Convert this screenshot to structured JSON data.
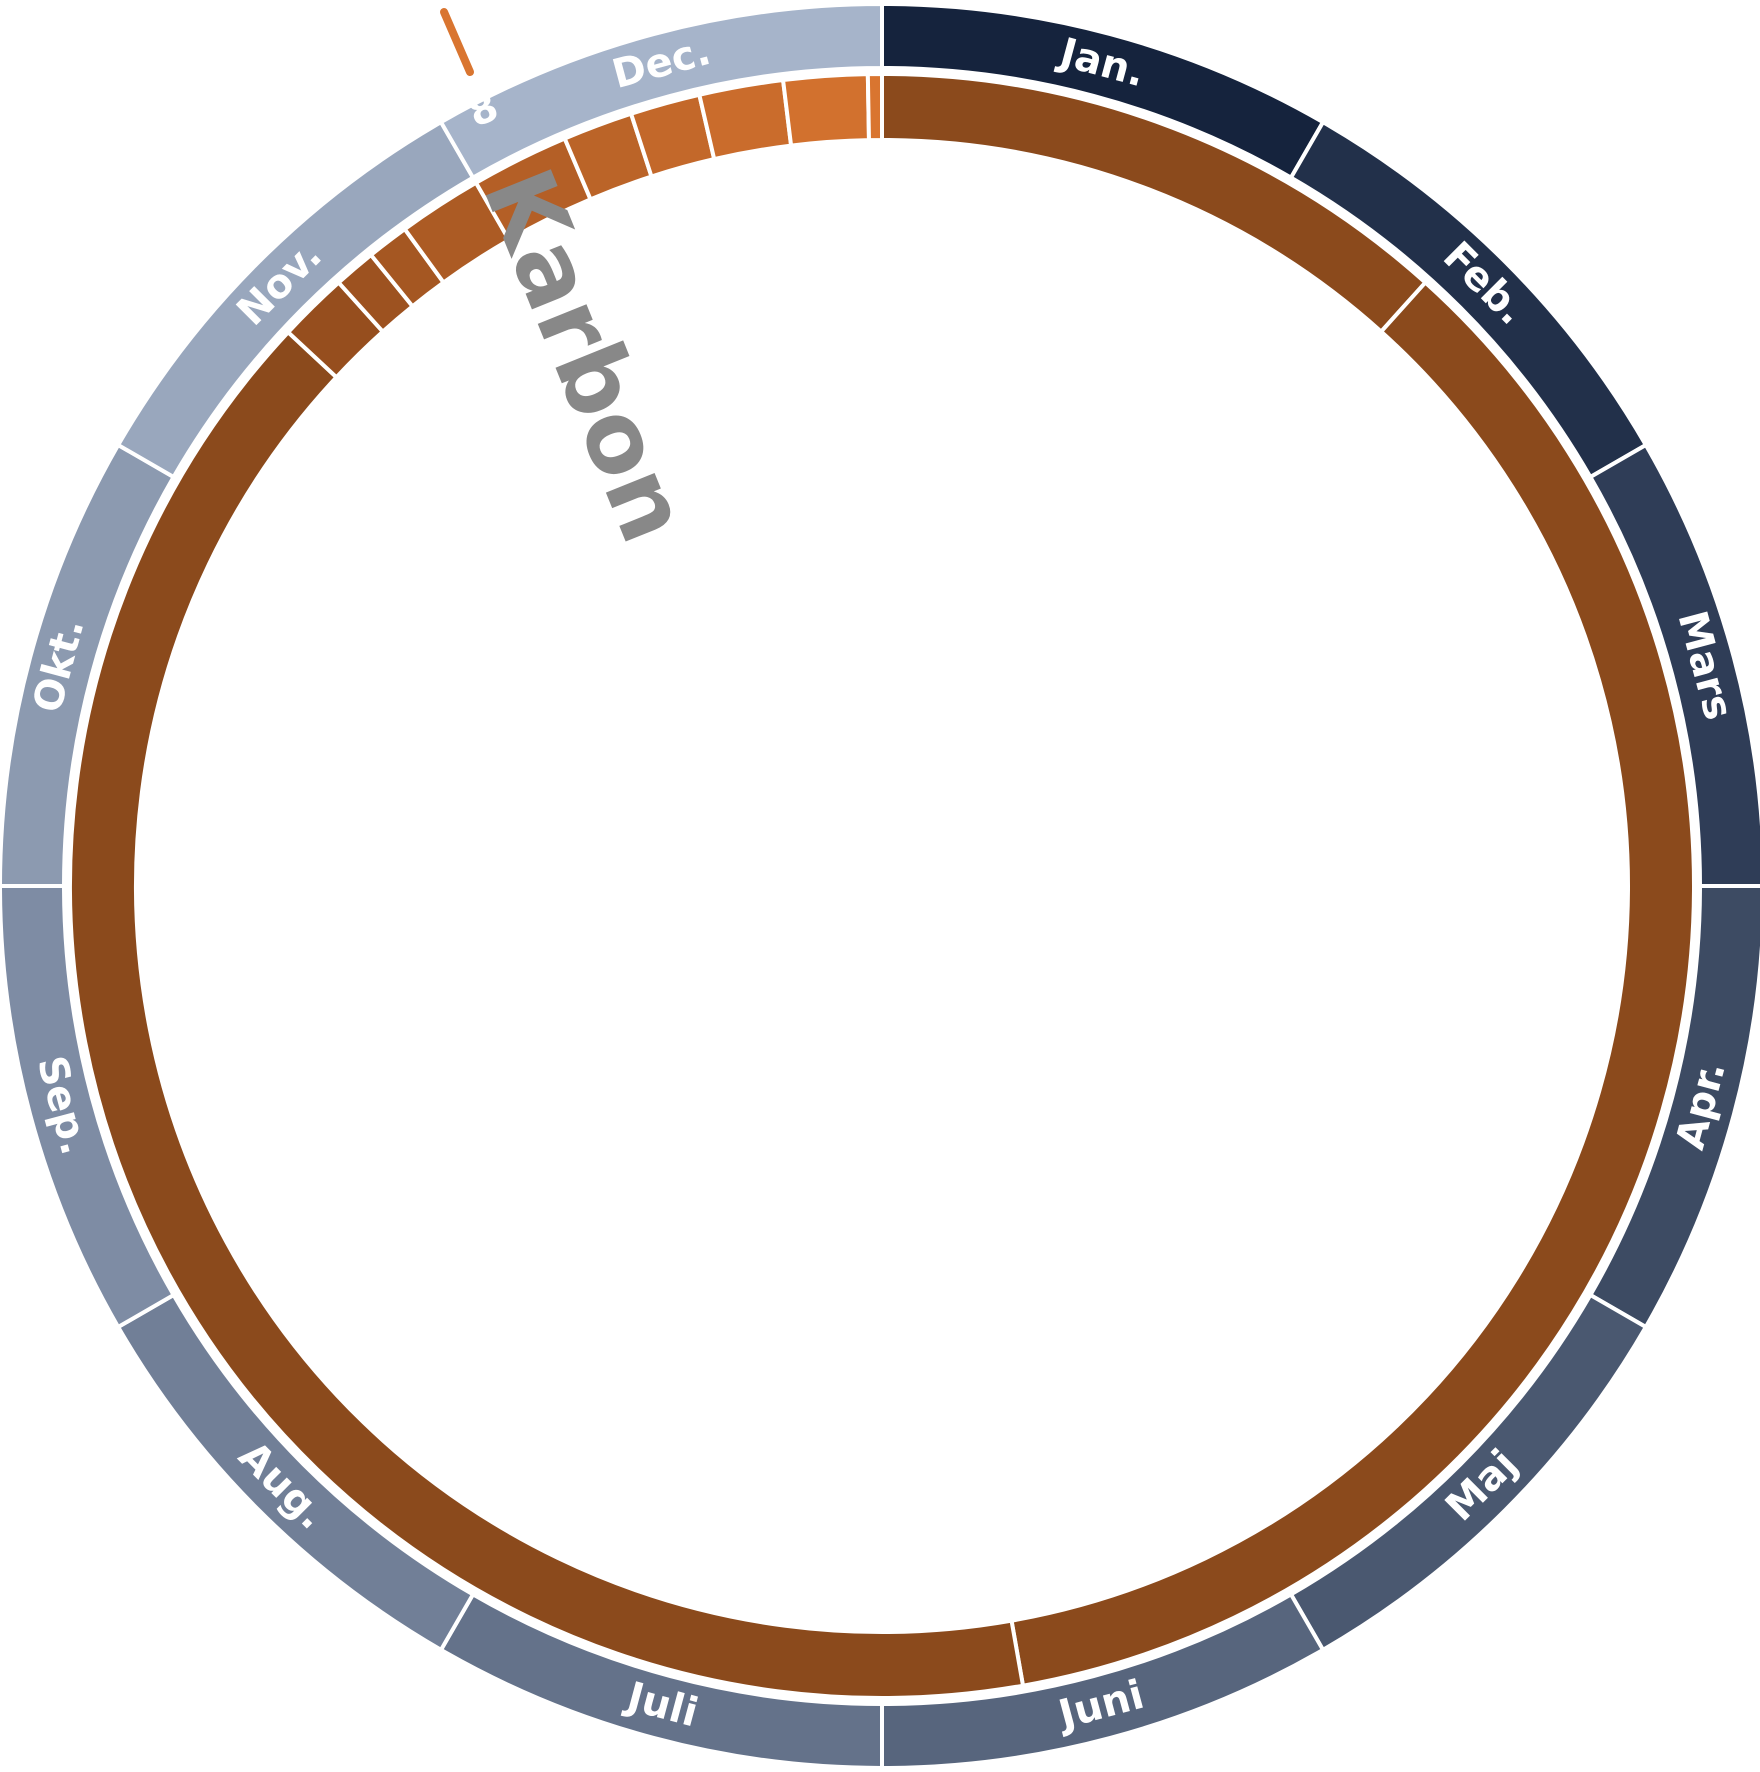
{
  "months": [
    "Jan.",
    "Feb.",
    "Mars",
    "Apr.",
    "Maj",
    "Juni",
    "Juli",
    "Aug.",
    "Sep.",
    "Okt.",
    "Nov.",
    "Dec."
  ],
  "period_label": "Karbon",
  "marker_label": "8"
}
